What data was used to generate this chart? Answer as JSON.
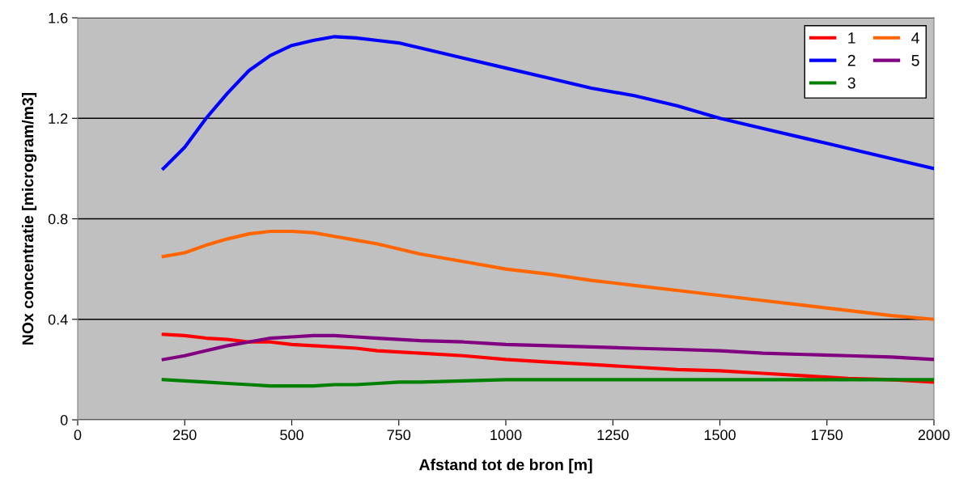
{
  "chart_data": {
    "type": "line",
    "xlabel": "Afstand tot de bron [m]",
    "ylabel": "NOx concentratie [microgram/m3]",
    "x": [
      200,
      250,
      300,
      350,
      400,
      450,
      500,
      550,
      600,
      650,
      700,
      750,
      800,
      900,
      1000,
      1100,
      1200,
      1300,
      1400,
      1500,
      1600,
      1700,
      1800,
      1900,
      2000
    ],
    "series": [
      {
        "name": "1",
        "color": "#ff0000",
        "values": [
          0.34,
          0.335,
          0.325,
          0.32,
          0.31,
          0.31,
          0.3,
          0.295,
          0.29,
          0.285,
          0.275,
          0.27,
          0.265,
          0.255,
          0.24,
          0.23,
          0.22,
          0.21,
          0.2,
          0.195,
          0.185,
          0.175,
          0.165,
          0.16,
          0.15
        ]
      },
      {
        "name": "2",
        "color": "#0000ff",
        "values": [
          1.0,
          1.085,
          1.2,
          1.3,
          1.39,
          1.45,
          1.49,
          1.51,
          1.525,
          1.52,
          1.51,
          1.5,
          1.48,
          1.44,
          1.4,
          1.36,
          1.32,
          1.29,
          1.25,
          1.2,
          1.16,
          1.12,
          1.08,
          1.04,
          1.0
        ]
      },
      {
        "name": "3",
        "color": "#008000",
        "values": [
          0.16,
          0.155,
          0.15,
          0.145,
          0.14,
          0.135,
          0.135,
          0.135,
          0.14,
          0.14,
          0.145,
          0.15,
          0.15,
          0.155,
          0.16,
          0.16,
          0.16,
          0.16,
          0.16,
          0.16,
          0.16,
          0.16,
          0.16,
          0.16,
          0.16
        ]
      },
      {
        "name": "4",
        "color": "#ff6600",
        "values": [
          0.65,
          0.665,
          0.695,
          0.72,
          0.74,
          0.75,
          0.75,
          0.745,
          0.73,
          0.715,
          0.7,
          0.68,
          0.66,
          0.63,
          0.6,
          0.58,
          0.555,
          0.535,
          0.515,
          0.495,
          0.475,
          0.455,
          0.435,
          0.415,
          0.4
        ]
      },
      {
        "name": "5",
        "color": "#800080",
        "values": [
          0.24,
          0.255,
          0.275,
          0.295,
          0.31,
          0.325,
          0.33,
          0.335,
          0.335,
          0.33,
          0.325,
          0.32,
          0.315,
          0.31,
          0.3,
          0.295,
          0.29,
          0.285,
          0.28,
          0.275,
          0.265,
          0.26,
          0.255,
          0.25,
          0.24
        ]
      }
    ],
    "xlim": [
      0,
      2000
    ],
    "xticks": [
      0,
      250,
      500,
      750,
      1000,
      1250,
      1500,
      1750,
      2000
    ],
    "ylim": [
      0,
      1.6
    ],
    "yticks": [
      0,
      0.4,
      0.8,
      1.2,
      1.6
    ],
    "grid": "y",
    "legend": "top right",
    "marker": "none",
    "line_style": "solid"
  }
}
